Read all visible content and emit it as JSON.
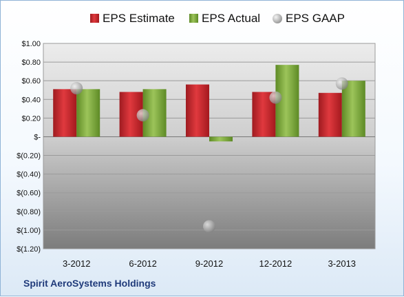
{
  "chart_data": {
    "type": "bar",
    "categories": [
      "3-2012",
      "6-2012",
      "9-2012",
      "12-2012",
      "3-2013"
    ],
    "series": [
      {
        "name": "EPS Estimate",
        "type": "bar",
        "color": "#c0282d",
        "values": [
          0.51,
          0.48,
          0.56,
          0.48,
          0.47
        ]
      },
      {
        "name": "EPS Actual",
        "type": "bar",
        "color": "#7aa33c",
        "values": [
          0.51,
          0.51,
          -0.05,
          0.77,
          0.6
        ]
      },
      {
        "name": "EPS GAAP",
        "type": "scatter",
        "color": "#a9a9a9",
        "values": [
          0.52,
          0.23,
          -0.96,
          0.42,
          0.57
        ]
      }
    ],
    "y_ticks": [
      "$1.00",
      "$0.80",
      "$0.60",
      "$0.40",
      "$0.20",
      "$-",
      "$(0.20)",
      "$(0.40)",
      "$(0.60)",
      "$(0.80)",
      "$(1.00)",
      "$(1.20)"
    ],
    "ylim": [
      -1.2,
      1.0
    ],
    "grid": true,
    "legend_position": "top"
  },
  "footer": {
    "company": "Spirit AeroSystems Holdings"
  }
}
